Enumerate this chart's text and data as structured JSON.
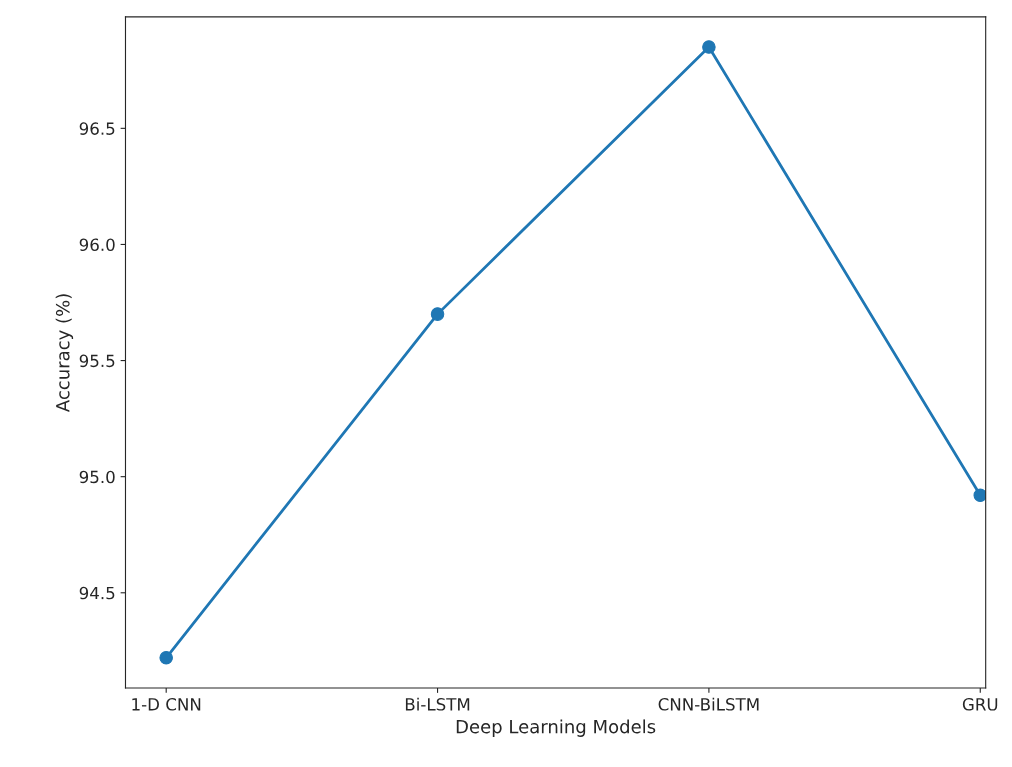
{
  "chart_data": {
    "type": "line",
    "xlabel": "Deep Learning Models",
    "ylabel": "Accuracy (%)",
    "categories": [
      "1-D CNN",
      "Bi-LSTM",
      "CNN-BiLSTM",
      "GRU"
    ],
    "series": [
      {
        "color": "#1f77b4",
        "values": [
          94.22,
          95.7,
          96.85,
          94.92
        ]
      }
    ],
    "ylim": [
      94.09,
      96.98
    ],
    "yticks": [
      {
        "value": 94.5,
        "label": "94.5"
      },
      {
        "value": 95.0,
        "label": "95.0"
      },
      {
        "value": 95.5,
        "label": "95.5"
      },
      {
        "value": 96.0,
        "label": "96.0"
      },
      {
        "value": 96.5,
        "label": "96.5"
      }
    ],
    "marker": "circle",
    "line_style": "solid",
    "grid": false,
    "legend": false
  }
}
